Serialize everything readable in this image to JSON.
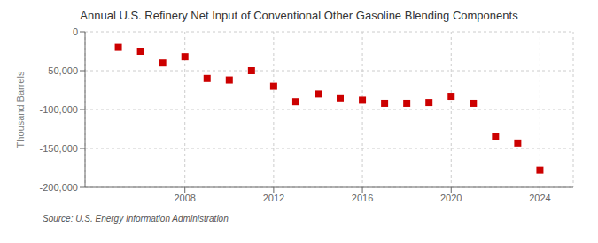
{
  "chart_data": {
    "type": "scatter",
    "title": "Annual U.S. Refinery Net Input of Conventional Other Gasoline Blending Components",
    "ylabel": "Thousand Barrels",
    "annotations": [
      "Source: U.S. Energy Information Administration"
    ],
    "x": [
      2005,
      2006,
      2007,
      2008,
      2009,
      2010,
      2011,
      2012,
      2013,
      2014,
      2015,
      2016,
      2017,
      2018,
      2019,
      2020,
      2021,
      2022,
      2023,
      2024
    ],
    "values": [
      -20000,
      -25000,
      -40000,
      -32000,
      -60000,
      -62000,
      -50000,
      -70000,
      -90000,
      -80000,
      -85000,
      -88000,
      -92000,
      -92000,
      -91000,
      -83000,
      -92000,
      -135000,
      -143000,
      -178000
    ],
    "color": "#cc0000",
    "marker": "square",
    "xlim": [
      2003.5,
      2025.5
    ],
    "xticks": [
      2008,
      2012,
      2016,
      2020,
      2024
    ],
    "ylim": [
      -200000,
      0
    ],
    "yticks": [
      0,
      {
        "value": -50000,
        "label": "-50,000"
      },
      {
        "value": -100000,
        "label": "-100,000"
      },
      {
        "value": -150000,
        "label": "-150,000"
      },
      {
        "value": -200000,
        "label": "-200,000"
      }
    ],
    "grid": true
  }
}
